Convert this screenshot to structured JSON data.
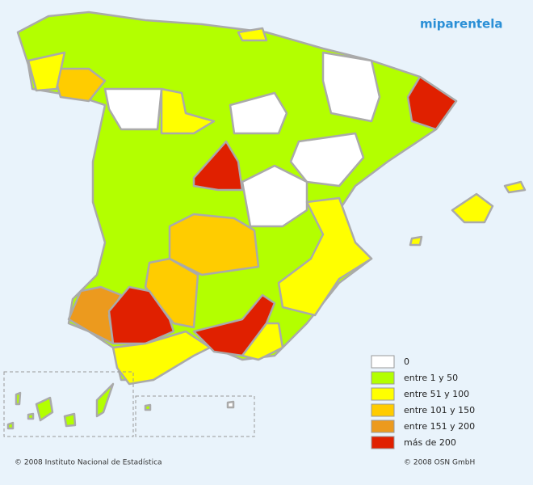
{
  "logo": "miparentela",
  "legend": [
    {
      "label": "0",
      "color": "#ffffff"
    },
    {
      "label": "entre 1 y 50",
      "color": "#b3ff00"
    },
    {
      "label": "entre 51 y 100",
      "color": "#ffff00"
    },
    {
      "label": "entre 101 y 150",
      "color": "#ffcc00"
    },
    {
      "label": "entre 151 y 200",
      "color": "#ec9a1e"
    },
    {
      "label": "más de 200",
      "color": "#e02000"
    }
  ],
  "footer": {
    "left": "© 2008 Instituto Nacional de Estadística",
    "right": "© 2008 OSN GmbH"
  }
}
